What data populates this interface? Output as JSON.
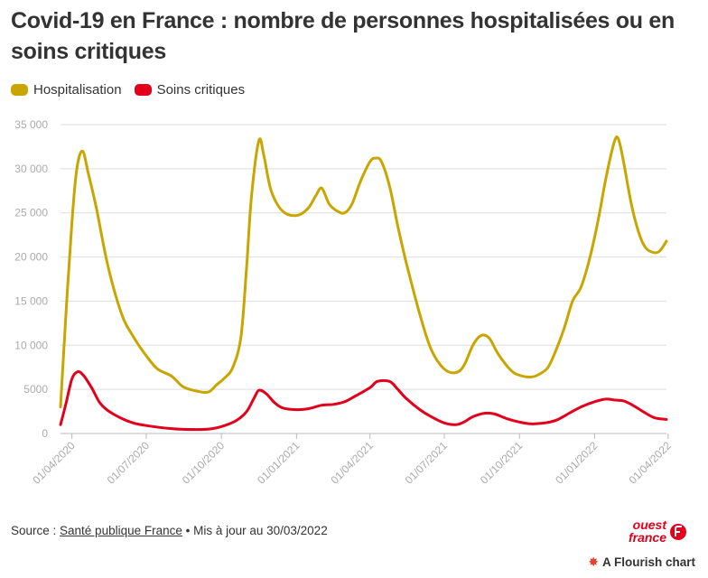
{
  "title": "Covid-19 en France : nombre de personnes hospitalisées ou en soins critiques",
  "legend": [
    {
      "label": "Hospitalisation",
      "color": "#c9a500"
    },
    {
      "label": "Soins critiques",
      "color": "#e2001a"
    }
  ],
  "footer": {
    "source_prefix": "Source : ",
    "source_link": "Santé publique France",
    "source_suffix": " • Mis à jour au 30/03/2022"
  },
  "logo": {
    "line1": "ouest",
    "line2": "france"
  },
  "flourish_label": "A Flourish chart",
  "colors": {
    "grid": "#dddddd",
    "axis_text": "#aaaaaa",
    "hosp": "#c9a500",
    "crit": "#e2001a"
  },
  "chart_data": {
    "type": "line",
    "title": "Covid-19 en France : nombre de personnes hospitalisées ou en soins critiques",
    "xlabel": "",
    "ylabel": "",
    "ylim": [
      0,
      35000
    ],
    "xlim": [
      "2020-03-18",
      "2022-03-30"
    ],
    "yticks": [
      0,
      5000,
      10000,
      15000,
      20000,
      25000,
      30000,
      35000
    ],
    "ytick_labels": [
      "0",
      "5000",
      "10 000",
      "15 000",
      "20 000",
      "25 000",
      "30 000",
      "35 000"
    ],
    "xticks": [
      "2020-04-01",
      "2020-07-01",
      "2020-10-01",
      "2021-01-01",
      "2021-04-01",
      "2021-07-01",
      "2021-10-01",
      "2022-01-01",
      "2022-04-01"
    ],
    "xtick_labels": [
      "01/04/2020",
      "01/07/2020",
      "01/10/2020",
      "01/01/2021",
      "01/04/2021",
      "01/07/2021",
      "01/10/2021",
      "01/01/2022",
      "01/04/2022"
    ],
    "series": [
      {
        "name": "Hospitalisation",
        "points": [
          [
            "2020-03-18",
            3000
          ],
          [
            "2020-03-25",
            14000
          ],
          [
            "2020-04-01",
            24000
          ],
          [
            "2020-04-07",
            30000
          ],
          [
            "2020-04-14",
            32000
          ],
          [
            "2020-04-21",
            29500
          ],
          [
            "2020-05-01",
            25500
          ],
          [
            "2020-05-15",
            19000
          ],
          [
            "2020-06-01",
            13500
          ],
          [
            "2020-06-15",
            11000
          ],
          [
            "2020-07-01",
            8800
          ],
          [
            "2020-07-15",
            7300
          ],
          [
            "2020-08-01",
            6500
          ],
          [
            "2020-08-15",
            5300
          ],
          [
            "2020-09-01",
            4800
          ],
          [
            "2020-09-15",
            4700
          ],
          [
            "2020-09-25",
            5500
          ],
          [
            "2020-10-05",
            6300
          ],
          [
            "2020-10-15",
            7500
          ],
          [
            "2020-10-25",
            11000
          ],
          [
            "2020-11-01",
            19000
          ],
          [
            "2020-11-07",
            27000
          ],
          [
            "2020-11-16",
            33200
          ],
          [
            "2020-11-22",
            31500
          ],
          [
            "2020-12-01",
            27500
          ],
          [
            "2020-12-15",
            25200
          ],
          [
            "2021-01-01",
            24700
          ],
          [
            "2021-01-15",
            25500
          ],
          [
            "2021-01-25",
            27000
          ],
          [
            "2021-02-01",
            27800
          ],
          [
            "2021-02-10",
            26000
          ],
          [
            "2021-02-20",
            25200
          ],
          [
            "2021-03-01",
            25000
          ],
          [
            "2021-03-10",
            26000
          ],
          [
            "2021-03-20",
            28500
          ],
          [
            "2021-04-01",
            30800
          ],
          [
            "2021-04-08",
            31200
          ],
          [
            "2021-04-15",
            30800
          ],
          [
            "2021-04-25",
            28000
          ],
          [
            "2021-05-05",
            23500
          ],
          [
            "2021-05-15",
            19500
          ],
          [
            "2021-06-01",
            13500
          ],
          [
            "2021-06-15",
            9500
          ],
          [
            "2021-07-01",
            7300
          ],
          [
            "2021-07-15",
            6900
          ],
          [
            "2021-07-25",
            7700
          ],
          [
            "2021-08-05",
            10000
          ],
          [
            "2021-08-15",
            11100
          ],
          [
            "2021-08-25",
            10800
          ],
          [
            "2021-09-05",
            9000
          ],
          [
            "2021-09-20",
            7200
          ],
          [
            "2021-10-01",
            6600
          ],
          [
            "2021-10-15",
            6400
          ],
          [
            "2021-10-25",
            6700
          ],
          [
            "2021-11-05",
            7500
          ],
          [
            "2021-11-15",
            9500
          ],
          [
            "2021-11-25",
            12000
          ],
          [
            "2021-12-05",
            15000
          ],
          [
            "2021-12-15",
            16500
          ],
          [
            "2021-12-25",
            19500
          ],
          [
            "2022-01-05",
            24000
          ],
          [
            "2022-01-15",
            29000
          ],
          [
            "2022-01-25",
            33000
          ],
          [
            "2022-01-30",
            33400
          ],
          [
            "2022-02-05",
            31000
          ],
          [
            "2022-02-15",
            26000
          ],
          [
            "2022-02-25",
            22500
          ],
          [
            "2022-03-05",
            21000
          ],
          [
            "2022-03-15",
            20500
          ],
          [
            "2022-03-22",
            20700
          ],
          [
            "2022-03-30",
            21800
          ]
        ]
      },
      {
        "name": "Soins critiques",
        "points": [
          [
            "2020-03-18",
            1000
          ],
          [
            "2020-03-25",
            3500
          ],
          [
            "2020-04-01",
            6200
          ],
          [
            "2020-04-08",
            7000
          ],
          [
            "2020-04-15",
            6600
          ],
          [
            "2020-04-25",
            5200
          ],
          [
            "2020-05-05",
            3500
          ],
          [
            "2020-05-15",
            2600
          ],
          [
            "2020-06-01",
            1700
          ],
          [
            "2020-06-15",
            1200
          ],
          [
            "2020-07-01",
            900
          ],
          [
            "2020-08-01",
            550
          ],
          [
            "2020-09-01",
            450
          ],
          [
            "2020-09-20",
            550
          ],
          [
            "2020-10-05",
            900
          ],
          [
            "2020-10-20",
            1500
          ],
          [
            "2020-11-01",
            2500
          ],
          [
            "2020-11-10",
            4000
          ],
          [
            "2020-11-16",
            4900
          ],
          [
            "2020-11-25",
            4500
          ],
          [
            "2020-12-05",
            3500
          ],
          [
            "2020-12-15",
            2900
          ],
          [
            "2021-01-01",
            2700
          ],
          [
            "2021-01-15",
            2800
          ],
          [
            "2021-02-01",
            3200
          ],
          [
            "2021-02-15",
            3300
          ],
          [
            "2021-03-01",
            3600
          ],
          [
            "2021-03-15",
            4300
          ],
          [
            "2021-04-01",
            5200
          ],
          [
            "2021-04-10",
            5900
          ],
          [
            "2021-04-25",
            5900
          ],
          [
            "2021-05-05",
            5000
          ],
          [
            "2021-05-15",
            4000
          ],
          [
            "2021-06-01",
            2700
          ],
          [
            "2021-06-15",
            1900
          ],
          [
            "2021-07-01",
            1200
          ],
          [
            "2021-07-15",
            1000
          ],
          [
            "2021-07-25",
            1300
          ],
          [
            "2021-08-05",
            1900
          ],
          [
            "2021-08-20",
            2300
          ],
          [
            "2021-09-01",
            2200
          ],
          [
            "2021-09-15",
            1700
          ],
          [
            "2021-10-01",
            1300
          ],
          [
            "2021-10-15",
            1100
          ],
          [
            "2021-11-01",
            1200
          ],
          [
            "2021-11-15",
            1500
          ],
          [
            "2021-12-01",
            2300
          ],
          [
            "2021-12-15",
            3000
          ],
          [
            "2022-01-01",
            3600
          ],
          [
            "2022-01-15",
            3900
          ],
          [
            "2022-01-25",
            3800
          ],
          [
            "2022-02-05",
            3700
          ],
          [
            "2022-02-15",
            3300
          ],
          [
            "2022-03-01",
            2500
          ],
          [
            "2022-03-15",
            1800
          ],
          [
            "2022-03-30",
            1600
          ]
        ]
      }
    ]
  }
}
